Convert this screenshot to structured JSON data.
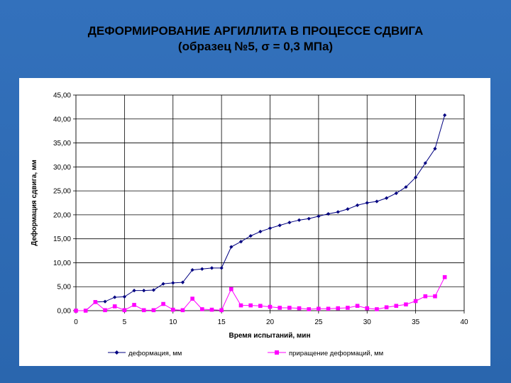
{
  "slide": {
    "title_line1": "ДЕФОРМИРОВАНИЕ АРГИЛЛИТА В ПРОЦЕССЕ СДВИГА",
    "title_line2": "(образец №5,  σ = 0,3 МПа)"
  },
  "chart_data": {
    "type": "line",
    "xlabel": "Время испытаний, мин",
    "ylabel": "Деформация сдвига, мм",
    "xlim": [
      0,
      40
    ],
    "ylim": [
      0,
      45
    ],
    "x_ticks": [
      "0",
      "5",
      "10",
      "15",
      "20",
      "25",
      "30",
      "35",
      "40"
    ],
    "y_ticks": [
      "0,00",
      "5,00",
      "10,00",
      "15,00",
      "20,00",
      "25,00",
      "30,00",
      "35,00",
      "40,00",
      "45,00"
    ],
    "grid": true,
    "legend_position": "bottom",
    "x": [
      0,
      1,
      2,
      3,
      4,
      5,
      6,
      7,
      8,
      9,
      10,
      11,
      12,
      13,
      14,
      15,
      16,
      17,
      18,
      19,
      20,
      21,
      22,
      23,
      24,
      25,
      26,
      27,
      28,
      29,
      30,
      31,
      32,
      33,
      34,
      35,
      36,
      37,
      38
    ],
    "series": [
      {
        "name": "деформация, мм",
        "color": "#000080",
        "marker": "diamond",
        "values": [
          0.0,
          0.0,
          1.8,
          1.9,
          2.8,
          2.9,
          4.2,
          4.2,
          4.3,
          5.6,
          5.8,
          5.9,
          8.5,
          8.7,
          8.9,
          8.9,
          13.3,
          14.4,
          15.6,
          16.5,
          17.2,
          17.8,
          18.4,
          18.9,
          19.2,
          19.7,
          20.2,
          20.6,
          21.2,
          22.0,
          22.5,
          22.8,
          23.5,
          24.5,
          25.8,
          27.8,
          30.8,
          33.8,
          40.8
        ]
      },
      {
        "name": "приращение деформаций, мм",
        "color": "#ff00ff",
        "marker": "square",
        "values": [
          0.0,
          0.0,
          1.8,
          0.1,
          0.9,
          0.1,
          1.2,
          0.1,
          0.1,
          1.4,
          0.2,
          0.1,
          2.5,
          0.3,
          0.2,
          0.1,
          4.5,
          1.1,
          1.1,
          1.0,
          0.8,
          0.6,
          0.6,
          0.5,
          0.3,
          0.4,
          0.4,
          0.5,
          0.6,
          1.0,
          0.5,
          0.3,
          0.7,
          1.0,
          1.3,
          2.0,
          3.0,
          3.0,
          7.0
        ]
      }
    ]
  }
}
